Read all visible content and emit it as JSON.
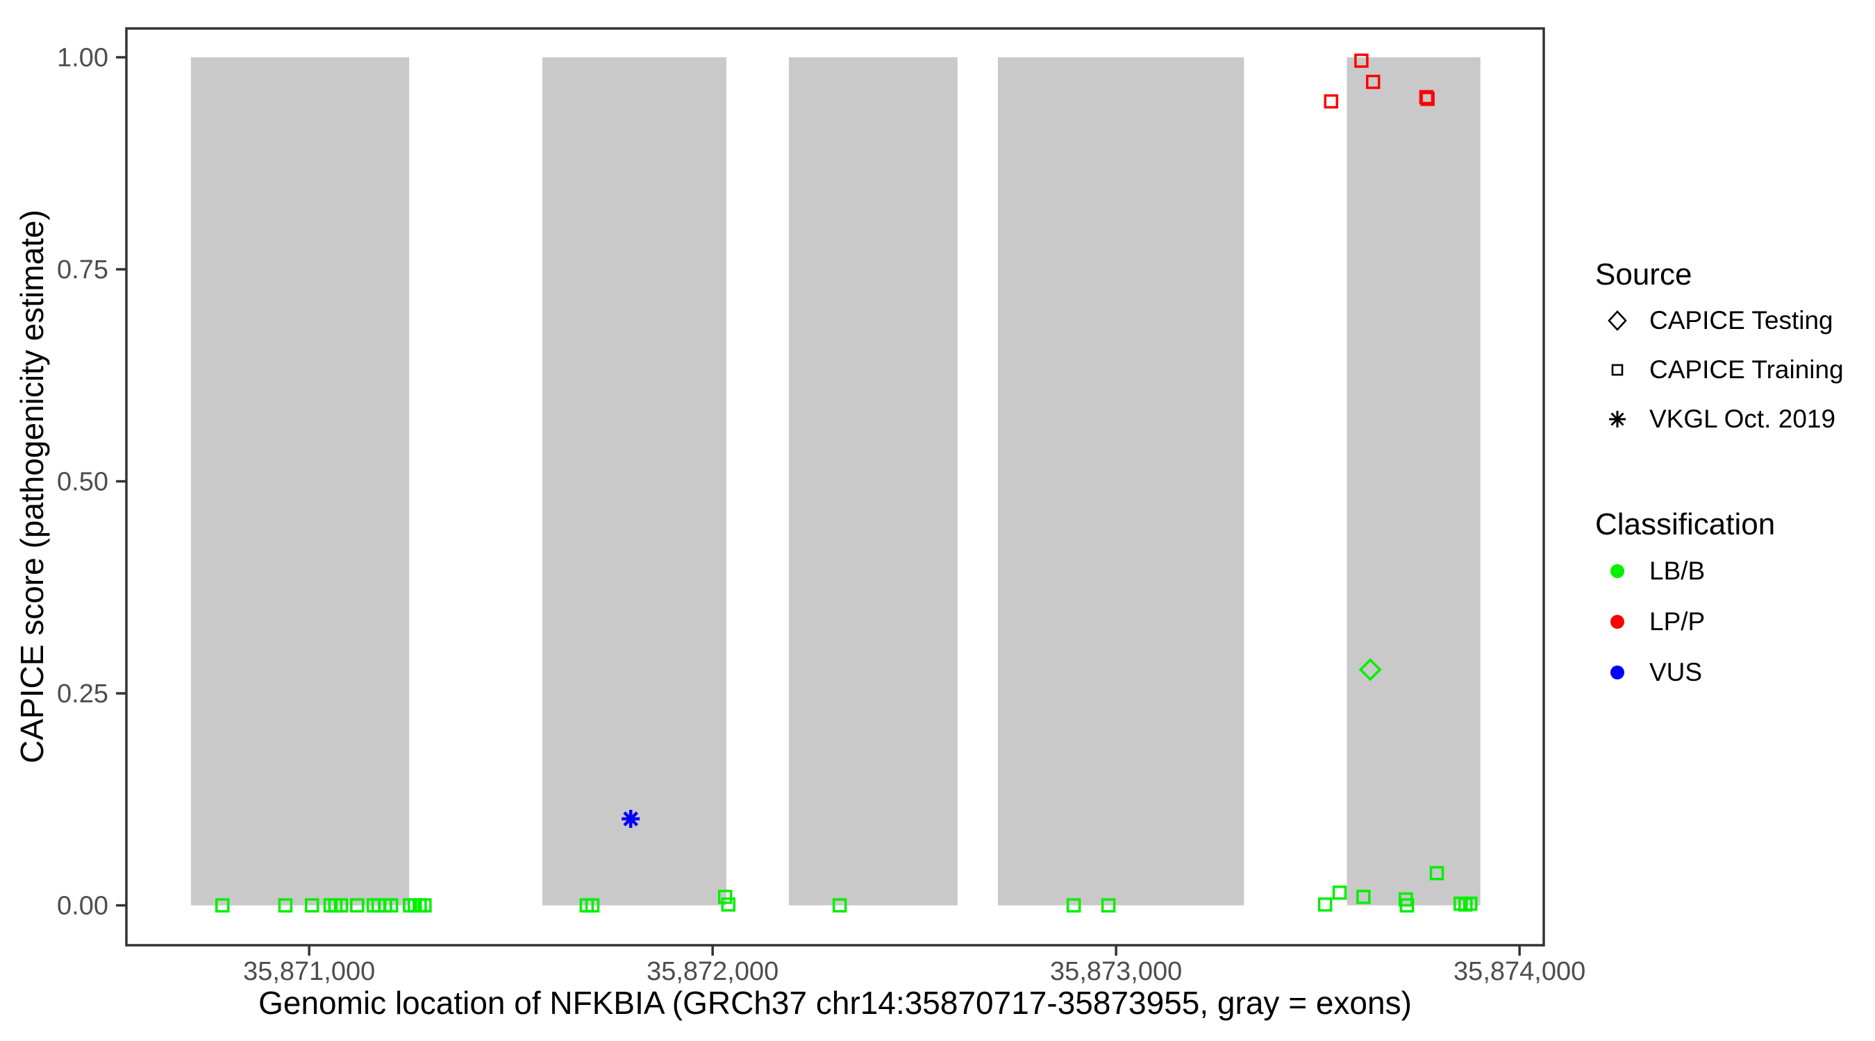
{
  "chart_data": {
    "type": "scatter",
    "title": "",
    "xlabel": "Genomic location of NFKBIA (GRCh37 chr14:35870717-35873955, gray = exons)",
    "ylabel": "CAPICE score (pathogenicity estimate)",
    "x_domain": [
      35870547,
      35874060
    ],
    "y_domain": [
      -0.047,
      1.034
    ],
    "grid": "off",
    "legend_position": "right",
    "x_ticks": [
      {
        "value": 35871000,
        "label": "35,871,000"
      },
      {
        "value": 35872000,
        "label": "35,872,000"
      },
      {
        "value": 35873000,
        "label": "35,873,000"
      },
      {
        "value": 35874000,
        "label": "35,874,000"
      }
    ],
    "y_ticks": [
      {
        "value": 0.0,
        "label": "0.00"
      },
      {
        "value": 0.25,
        "label": "0.25"
      },
      {
        "value": 0.5,
        "label": "0.50"
      },
      {
        "value": 0.75,
        "label": "0.75"
      },
      {
        "value": 1.0,
        "label": "1.00"
      }
    ],
    "exons": [
      [
        35870707,
        35871248
      ],
      [
        35871578,
        35872034
      ],
      [
        35872189,
        35872607
      ],
      [
        35872707,
        35873317
      ],
      [
        35873572,
        35873903
      ]
    ],
    "series": [
      {
        "name": "CAPICE Training / LB-B",
        "source": "CAPICE Training",
        "classification": "LB/B",
        "shape": "square-outline",
        "color": "#00F000",
        "points": [
          [
            35870785,
            0.0
          ],
          [
            35870941,
            0.0
          ],
          [
            35871007,
            0.0
          ],
          [
            35871053,
            0.0
          ],
          [
            35871065,
            0.0
          ],
          [
            35871079,
            0.0
          ],
          [
            35871119,
            0.0
          ],
          [
            35871160,
            0.0
          ],
          [
            35871172,
            0.0
          ],
          [
            35871188,
            0.0
          ],
          [
            35871203,
            0.0
          ],
          [
            35871250,
            0.0
          ],
          [
            35871262,
            0.0
          ],
          [
            35871274,
            0.0
          ],
          [
            35871286,
            0.0
          ],
          [
            35871688,
            0.0
          ],
          [
            35871702,
            0.0
          ],
          [
            35872031,
            0.01
          ],
          [
            35872039,
            0.001
          ],
          [
            35872315,
            0.0
          ],
          [
            35872895,
            0.0
          ],
          [
            35872981,
            0.0
          ],
          [
            35873518,
            0.001
          ],
          [
            35873554,
            0.015
          ],
          [
            35873613,
            0.01
          ],
          [
            35873718,
            0.007
          ],
          [
            35873721,
            0.0
          ],
          [
            35873795,
            0.038
          ],
          [
            35873854,
            0.002
          ],
          [
            35873866,
            0.001
          ],
          [
            35873878,
            0.002
          ]
        ]
      },
      {
        "name": "CAPICE Training / LP-P",
        "source": "CAPICE Training",
        "classification": "LP/P",
        "shape": "square-outline",
        "color": "#FF0000",
        "points": [
          [
            35873533,
            0.948
          ],
          [
            35873608,
            0.996
          ],
          [
            35873637,
            0.971
          ],
          [
            35873769,
            0.953
          ],
          [
            35873772,
            0.951
          ]
        ]
      },
      {
        "name": "CAPICE Testing / LB-B",
        "source": "CAPICE Testing",
        "classification": "LB/B",
        "shape": "diamond-outline",
        "color": "#00F000",
        "points": [
          [
            35873630,
            0.278
          ]
        ]
      },
      {
        "name": "VKGL Oct. 2019 / VUS",
        "source": "VKGL Oct. 2019",
        "classification": "VUS",
        "shape": "asterisk",
        "color": "#0000FF",
        "points": [
          [
            35871797,
            0.102
          ]
        ]
      }
    ]
  },
  "legend": {
    "source": {
      "title": "Source",
      "items": [
        {
          "label": "CAPICE Testing",
          "symbol": "diamond-outline-icon"
        },
        {
          "label": "CAPICE Training",
          "symbol": "square-outline-icon"
        },
        {
          "label": "VKGL Oct. 2019",
          "symbol": "asterisk-icon"
        }
      ]
    },
    "classification": {
      "title": "Classification",
      "items": [
        {
          "label": "LB/B",
          "color": "#00F000"
        },
        {
          "label": "LP/P",
          "color": "#FF0000"
        },
        {
          "label": "VUS",
          "color": "#0000FF"
        }
      ]
    }
  },
  "colors": {
    "exon_fill": "#C9C9C9",
    "panel_border": "#333333",
    "tick_mark": "#333333",
    "tick_label": "#4D4D4D",
    "axis_title": "#000000"
  }
}
